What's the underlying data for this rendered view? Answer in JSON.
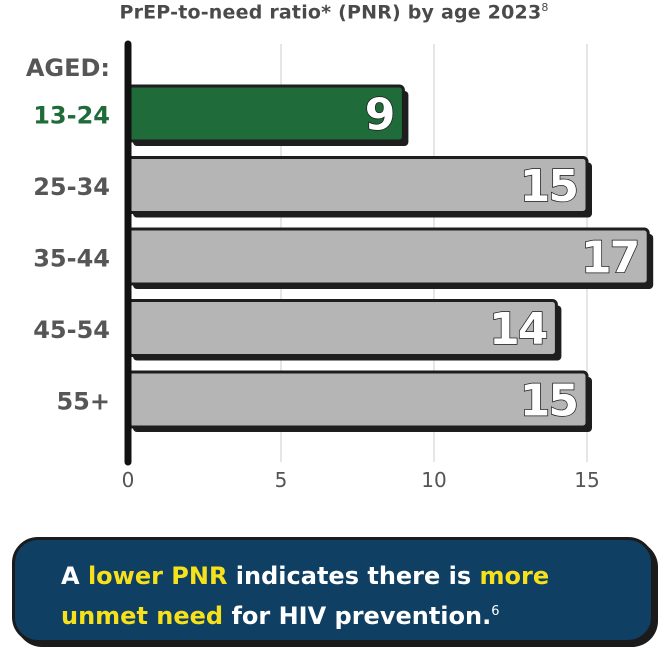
{
  "chart_data": {
    "type": "bar",
    "orientation": "horizontal",
    "title": "PrEP-to-need ratio* (PNR) by age 2023",
    "title_sup": "8",
    "legend_label": "AGED:",
    "categories": [
      "13-24",
      "25-34",
      "35-44",
      "45-54",
      "55+"
    ],
    "values": [
      9,
      15,
      17,
      14,
      15
    ],
    "highlight_index": 0,
    "xlim": [
      0,
      17
    ],
    "xticks": [
      0,
      5,
      10,
      15
    ],
    "grid": true,
    "xlabel": "",
    "ylabel": ""
  },
  "colors": {
    "highlight": "#1f6b3a",
    "bar": "#b5b5b5",
    "bar_border": "#1e1e1e",
    "shadow": "#1e1e1e",
    "label_gray": "#565656",
    "grid": "#dddddd",
    "tick_label": "#555555",
    "callout_bg": "#0f3f63",
    "callout_highlight": "#f7e11b"
  },
  "callout": {
    "part1": "A ",
    "part2": "lower PNR",
    "part3": " indicates there is ",
    "part4": "more unmet need",
    "part5": " for HIV prevention.",
    "sup": "6"
  }
}
